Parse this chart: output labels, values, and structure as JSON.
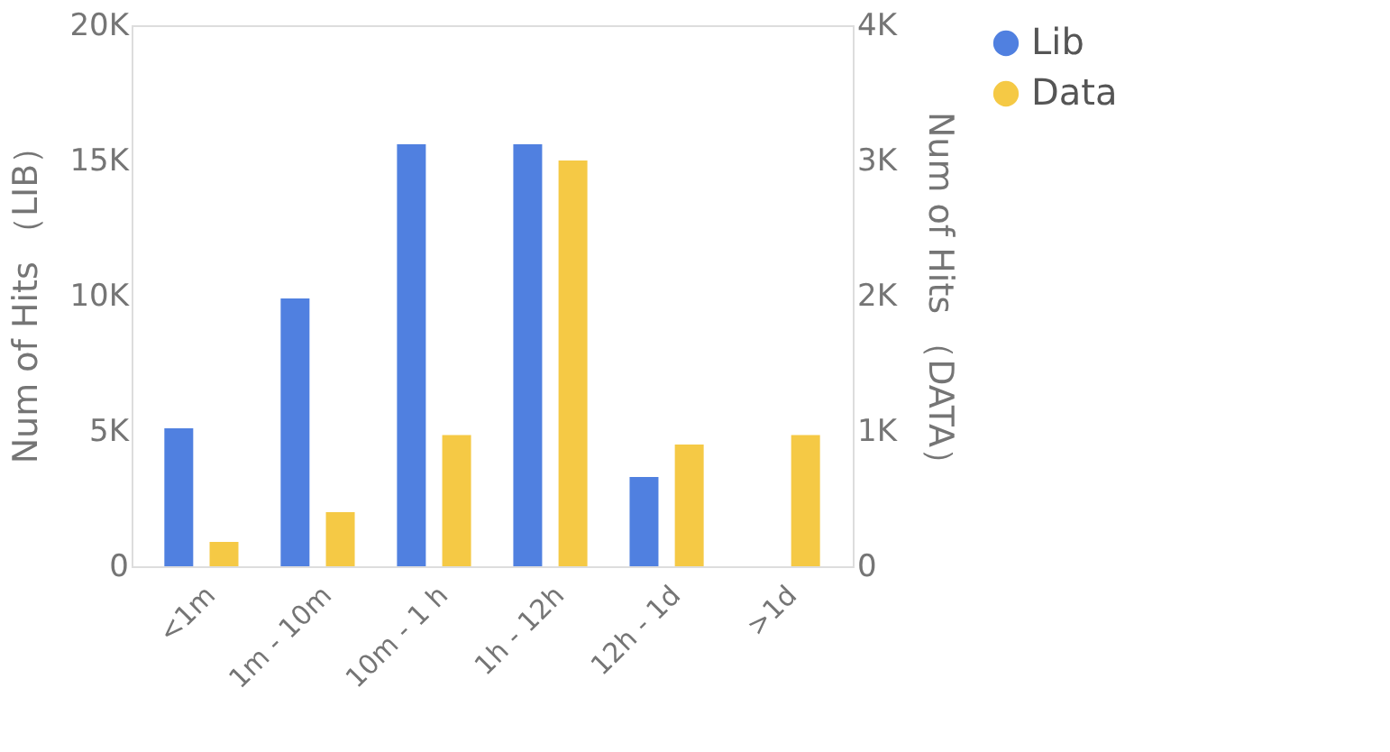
{
  "chart_data": {
    "type": "bar",
    "categories": [
      "<1m",
      "1m - 10m",
      "10m - 1 h",
      "1h - 12h",
      "12h - 1d",
      ">1d"
    ],
    "series": [
      {
        "name": "Lib",
        "color": "#5080e0",
        "values": [
          5100,
          9900,
          15600,
          15600,
          3300,
          null
        ]
      },
      {
        "name": "Data",
        "color": "#f5c945",
        "axis": "y2",
        "values": [
          180,
          400,
          970,
          3000,
          900,
          970
        ]
      }
    ],
    "ylabel": "Num of Hits （LIB）",
    "y2label": "Num of Hits （DATA）",
    "ylim": [
      0,
      20000
    ],
    "yticks": [
      {
        "value": 0,
        "label": "0"
      },
      {
        "value": 5000,
        "label": "5K"
      },
      {
        "value": 10000,
        "label": "10K"
      },
      {
        "value": 15000,
        "label": "15K"
      },
      {
        "value": 20000,
        "label": "20K"
      }
    ],
    "y2lim": [
      0,
      4000
    ],
    "y2ticks": [
      {
        "value": 0,
        "label": "0"
      },
      {
        "value": 1000,
        "label": "1K"
      },
      {
        "value": 2000,
        "label": "2K"
      },
      {
        "value": 3000,
        "label": "3K"
      },
      {
        "value": 4000,
        "label": "4K"
      }
    ],
    "grid": false,
    "legend": "top right"
  }
}
